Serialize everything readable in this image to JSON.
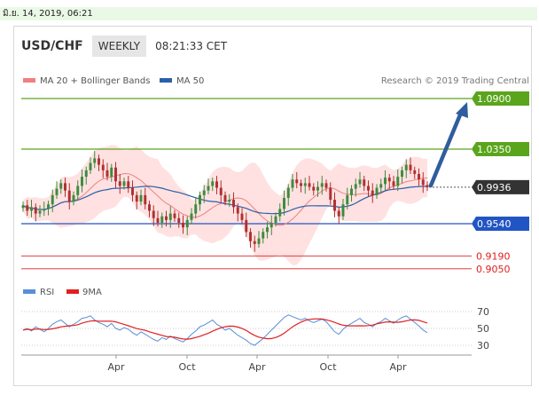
{
  "date_stamp": "มิ.ย. 14, 2019, 06:21",
  "header": {
    "pair": "USD/CHF",
    "timeframe": "WEEKLY",
    "time": "08:21:33 CET"
  },
  "legend": {
    "ma20": "MA 20 + Bollinger Bands",
    "ma50": "MA 50",
    "credit": "Research © 2019 Trading Central"
  },
  "rsi_legend": {
    "rsi": "RSI",
    "ma": "9MA"
  },
  "colors": {
    "resistance": "#5ba51d",
    "support": "#2255c4",
    "red_level": "#e02020",
    "current": "#333333",
    "ma20": "#f08080",
    "ma50": "#2b5faa",
    "bollinger": "#ffdede",
    "arrow": "#2f5d9e",
    "up": "#3d8b3d",
    "down": "#b03030",
    "rsi": "#5b8fd6",
    "rsi_ma": "#e02020"
  },
  "chart_data": {
    "type": "candlestick",
    "levels": [
      {
        "label": "1.0900",
        "value": 1.09,
        "kind": "resistance"
      },
      {
        "label": "1.0350",
        "value": 1.035,
        "kind": "resistance"
      },
      {
        "label": "0.9936",
        "value": 0.9936,
        "kind": "current"
      },
      {
        "label": "0.9540",
        "value": 0.954,
        "kind": "support"
      },
      {
        "label": "0.9190",
        "value": 0.919,
        "kind": "red"
      },
      {
        "label": "0.9050",
        "value": 0.905,
        "kind": "red"
      }
    ],
    "x_ticks": [
      "Apr",
      "Oct",
      "Apr",
      "Oct",
      "Apr"
    ],
    "rsi_ticks": [
      "70",
      "50",
      "30"
    ],
    "closes": [
      0.974,
      0.968,
      0.972,
      0.965,
      0.968,
      0.97,
      0.975,
      0.985,
      0.992,
      0.998,
      0.99,
      0.978,
      0.985,
      0.995,
      1.005,
      1.012,
      1.02,
      1.025,
      1.018,
      1.012,
      1.005,
      1.015,
      1.0,
      0.995,
      1.0,
      0.993,
      0.985,
      0.978,
      0.985,
      0.975,
      0.968,
      0.96,
      0.955,
      0.962,
      0.958,
      0.965,
      0.96,
      0.955,
      0.95,
      0.958,
      0.965,
      0.975,
      0.985,
      0.99,
      0.995,
      1.0,
      0.993,
      0.985,
      0.978,
      0.98,
      0.972,
      0.965,
      0.958,
      0.945,
      0.935,
      0.932,
      0.938,
      0.945,
      0.95,
      0.955,
      0.962,
      0.97,
      0.982,
      0.993,
      1.002,
      0.998,
      0.995,
      0.998,
      0.994,
      0.99,
      0.994,
      0.998,
      0.993,
      0.98,
      0.968,
      0.962,
      0.975,
      0.985,
      0.992,
      0.997,
      1.002,
      0.995,
      0.99,
      0.985,
      0.993,
      0.997,
      1.004,
      1.0,
      0.995,
      1.005,
      1.012,
      1.018,
      1.012,
      1.008,
      1.002,
      0.996,
      0.9936
    ],
    "rsi": [
      48,
      50,
      47,
      52,
      49,
      46,
      50,
      55,
      58,
      60,
      56,
      52,
      55,
      58,
      62,
      63,
      65,
      60,
      57,
      55,
      52,
      56,
      50,
      48,
      51,
      49,
      45,
      42,
      46,
      43,
      40,
      37,
      35,
      39,
      37,
      41,
      38,
      36,
      34,
      38,
      43,
      47,
      52,
      54,
      57,
      60,
      55,
      52,
      48,
      50,
      46,
      42,
      39,
      36,
      32,
      30,
      34,
      38,
      43,
      48,
      53,
      58,
      63,
      66,
      64,
      62,
      60,
      62,
      59,
      57,
      59,
      61,
      58,
      52,
      46,
      43,
      49,
      53,
      56,
      59,
      62,
      57,
      55,
      52,
      56,
      58,
      62,
      59,
      56,
      60,
      63,
      65,
      61,
      57,
      53,
      48,
      45
    ]
  }
}
